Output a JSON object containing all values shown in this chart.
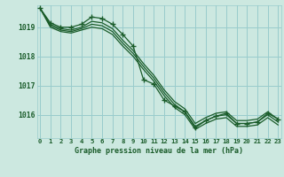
{
  "title": "Graphe pression niveau de la mer (hPa)",
  "bg_color": "#cce8e0",
  "grid_color": "#99cccc",
  "line_color": "#1a5c2a",
  "x_labels": [
    "0",
    "1",
    "2",
    "3",
    "4",
    "5",
    "6",
    "7",
    "8",
    "9",
    "10",
    "11",
    "12",
    "13",
    "14",
    "15",
    "16",
    "17",
    "18",
    "19",
    "20",
    "21",
    "22",
    "23"
  ],
  "yticks": [
    1016,
    1017,
    1018,
    1019
  ],
  "ylim": [
    1015.2,
    1019.75
  ],
  "xlim": [
    -0.3,
    23.3
  ],
  "line_sharp": [
    1019.65,
    1019.15,
    1019.0,
    1019.0,
    1019.1,
    1019.35,
    1019.3,
    1019.1,
    1018.75,
    1018.35,
    1017.2,
    1017.05,
    1016.5,
    1016.3,
    1016.1,
    1015.55,
    1015.8,
    1015.95,
    1016.05,
    1015.7,
    1015.7,
    1015.75,
    1016.05,
    1015.85
  ],
  "line_smooth1": [
    1019.65,
    1019.1,
    1018.95,
    1018.9,
    1019.0,
    1019.2,
    1019.15,
    1018.95,
    1018.55,
    1018.2,
    1017.75,
    1017.35,
    1016.85,
    1016.45,
    1016.2,
    1015.7,
    1015.9,
    1016.05,
    1016.1,
    1015.8,
    1015.8,
    1015.85,
    1016.1,
    1015.85
  ],
  "line_smooth2": [
    1019.65,
    1019.05,
    1018.9,
    1018.85,
    1018.95,
    1019.1,
    1019.05,
    1018.85,
    1018.45,
    1018.1,
    1017.65,
    1017.25,
    1016.75,
    1016.35,
    1016.1,
    1015.6,
    1015.8,
    1015.95,
    1016.0,
    1015.7,
    1015.7,
    1015.75,
    1016.0,
    1015.75
  ],
  "line_smooth3": [
    1019.65,
    1019.0,
    1018.85,
    1018.8,
    1018.9,
    1019.0,
    1018.95,
    1018.75,
    1018.35,
    1018.0,
    1017.55,
    1017.15,
    1016.65,
    1016.25,
    1016.0,
    1015.5,
    1015.7,
    1015.85,
    1015.9,
    1015.6,
    1015.6,
    1015.65,
    1015.9,
    1015.65
  ]
}
